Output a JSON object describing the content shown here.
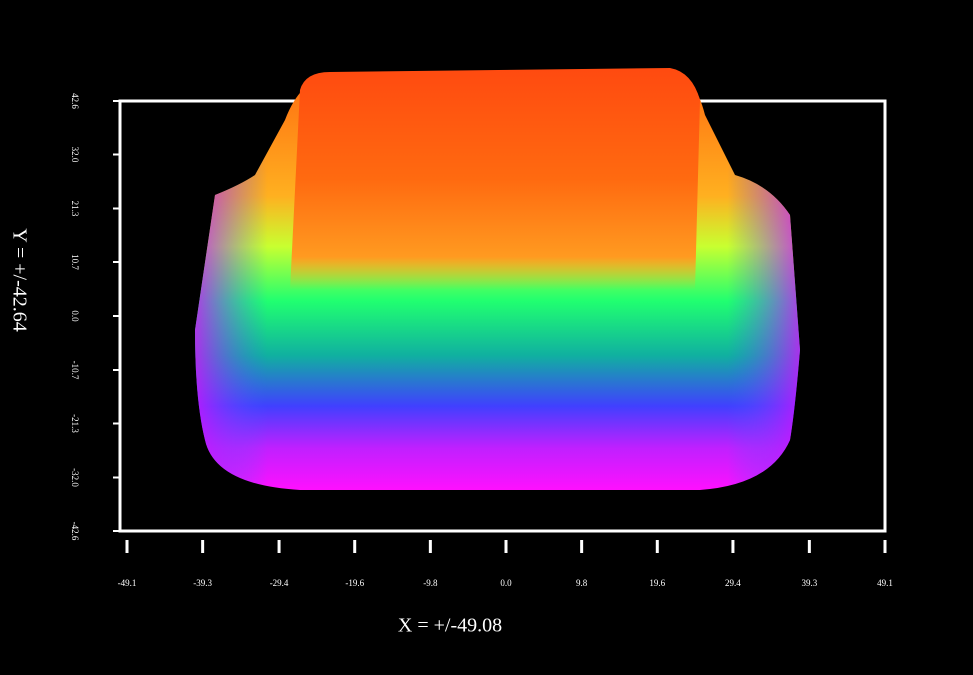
{
  "chart_data": {
    "type": "surface",
    "xlabel": "X = +/-49.08",
    "ylabel": "Y = +/-42.64",
    "xlim": [
      -49.1,
      49.1
    ],
    "ylim": [
      -42.6,
      42.6
    ],
    "xticks": [
      -49.1,
      -39.3,
      -29.4,
      -19.6,
      -9.8,
      {
        "value": 0,
        "label": "0.0"
      },
      9.8,
      19.6,
      29.4,
      39.3,
      49.1
    ],
    "yticks": [
      42.6,
      {
        "value": 32,
        "label": "32.0"
      },
      21.3,
      10.7,
      {
        "value": 0,
        "label": "0.0"
      },
      -10.7,
      -21.3,
      {
        "value": -32,
        "label": "-32.0"
      },
      -42.6
    ]
  }
}
